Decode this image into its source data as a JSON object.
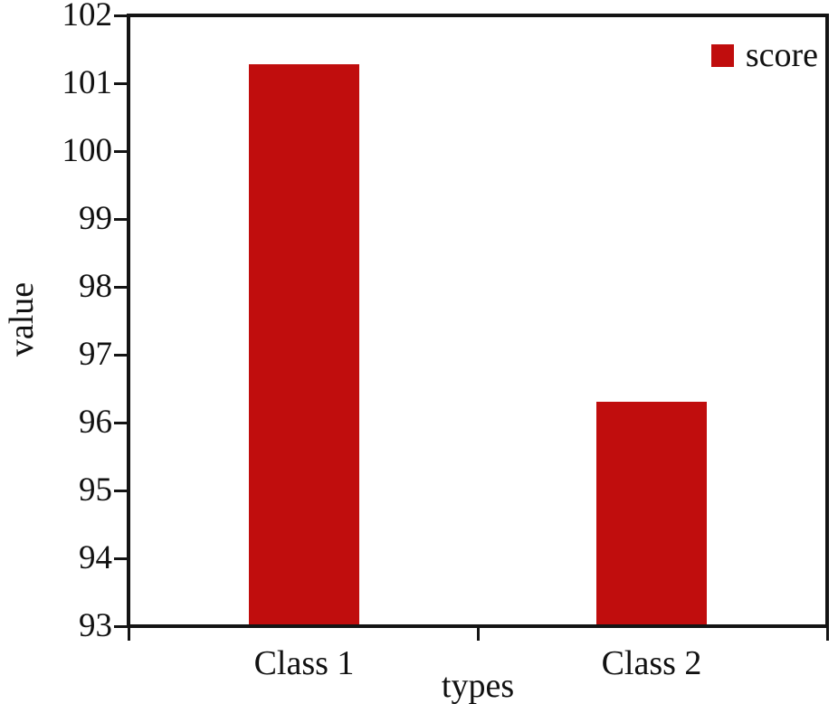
{
  "chart_data": {
    "type": "bar",
    "title": "",
    "categories": [
      "Class 1",
      "Class 2"
    ],
    "series": [
      {
        "name": "score",
        "values": [
          101.3,
          96.3
        ]
      }
    ],
    "xlabel": "types",
    "ylabel": "value",
    "ylim": [
      93,
      102
    ],
    "ytick_step": 1,
    "grid": false,
    "legend_position": "top-right",
    "colors": {
      "bar": "#c00d0d",
      "axis": "#141414",
      "text": "#111111",
      "background": "#ffffff"
    }
  }
}
